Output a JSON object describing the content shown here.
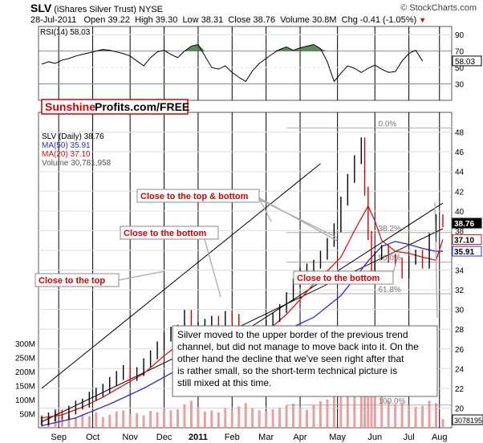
{
  "header": {
    "symbol": "SLV",
    "name": "(iShares Silver Trust)",
    "exchange": "NYSE",
    "credit": "© StockCharts.com",
    "date": "28-Jul-2011",
    "open_label": "Open",
    "open": "39.22",
    "high_label": "High",
    "high": "39.30",
    "low_label": "Low",
    "low": "38.31",
    "close_label": "Close",
    "close": "38.76",
    "volume_label": "Volume",
    "volume": "30.8M",
    "chg_label": "Chg",
    "chg": "-0.41 (-1.05%)",
    "chg_arrow": "▼"
  },
  "colors": {
    "price_up": "#000000",
    "price_down": "#d40000",
    "ma50": "#2b2bd6",
    "ma20": "#e01010",
    "rsi_fill": "#3a7a3a",
    "annotation_text": "#d40000",
    "volume_bar": "#e6a0a0",
    "sunshine": "#d40000",
    "label_price_bg": "#000000",
    "label_ma20_border": "#e01010",
    "label_ma50_border": "#2b2bd6"
  },
  "chart_data": {
    "type": "line",
    "x_tick_labels": [
      "Sep",
      "Oct",
      "Nov",
      "Dec",
      "2011",
      "Feb",
      "Mar",
      "Apr",
      "May",
      "Jun",
      "Jul",
      "Aug"
    ],
    "rsi": {
      "label": "RSI(14) 58.03",
      "current": 58.03,
      "ylim": [
        10,
        100
      ],
      "yticks": [
        90,
        70,
        50,
        30
      ],
      "overbought": 70,
      "oversold": 30,
      "points": [
        [
          0,
          54
        ],
        [
          2,
          57
        ],
        [
          4,
          55
        ],
        [
          6,
          59
        ],
        [
          8,
          61
        ],
        [
          10,
          64
        ],
        [
          12,
          66
        ],
        [
          14,
          68
        ],
        [
          16,
          70
        ],
        [
          18,
          72
        ],
        [
          20,
          71
        ],
        [
          22,
          69
        ],
        [
          24,
          67
        ],
        [
          26,
          64
        ],
        [
          28,
          58
        ],
        [
          30,
          52
        ],
        [
          32,
          62
        ],
        [
          34,
          69
        ],
        [
          36,
          71
        ],
        [
          38,
          66
        ],
        [
          40,
          62
        ],
        [
          42,
          70
        ],
        [
          44,
          76
        ],
        [
          46,
          78
        ],
        [
          48,
          64
        ],
        [
          50,
          50
        ],
        [
          52,
          48
        ],
        [
          54,
          52
        ],
        [
          56,
          44
        ],
        [
          58,
          38
        ],
        [
          60,
          33
        ],
        [
          62,
          46
        ],
        [
          64,
          55
        ],
        [
          66,
          61
        ],
        [
          68,
          67
        ],
        [
          70,
          72
        ],
        [
          72,
          75
        ],
        [
          74,
          71
        ],
        [
          76,
          74
        ],
        [
          78,
          76
        ],
        [
          80,
          78
        ],
        [
          82,
          73
        ],
        [
          84,
          57
        ],
        [
          86,
          33
        ],
        [
          88,
          43
        ],
        [
          90,
          52
        ],
        [
          92,
          49
        ],
        [
          94,
          44
        ],
        [
          96,
          49
        ],
        [
          98,
          53
        ],
        [
          100,
          48
        ],
        [
          102,
          44
        ],
        [
          104,
          45
        ],
        [
          106,
          58
        ],
        [
          108,
          67
        ],
        [
          110,
          71
        ],
        [
          112,
          58
        ]
      ]
    },
    "price": {
      "series_label": "SLV (Daily) 38.76",
      "ma50_label": "MA(50) 35.91",
      "ma20_label": "MA(20) 37.10",
      "volume_label": "Volume 30,781,958",
      "ylim": [
        18,
        50
      ],
      "yticks": [
        48,
        46,
        44,
        42,
        40,
        38,
        36,
        34,
        32,
        30,
        28,
        26,
        24,
        22,
        20
      ],
      "last_price": 38.76,
      "last_ma20": 37.1,
      "last_ma50": 35.91,
      "close": [
        [
          0,
          18.7
        ],
        [
          2,
          19.1
        ],
        [
          4,
          19.4
        ],
        [
          6,
          19.3
        ],
        [
          8,
          19.8
        ],
        [
          10,
          20.3
        ],
        [
          12,
          20.5
        ],
        [
          14,
          21.2
        ],
        [
          16,
          21.6
        ],
        [
          18,
          22.0
        ],
        [
          20,
          22.7
        ],
        [
          22,
          23.3
        ],
        [
          24,
          23.9
        ],
        [
          26,
          23.2
        ],
        [
          28,
          23.7
        ],
        [
          30,
          24.6
        ],
        [
          32,
          25.4
        ],
        [
          34,
          26.3
        ],
        [
          36,
          27.2
        ],
        [
          38,
          27.8
        ],
        [
          40,
          28.0
        ],
        [
          42,
          29.5
        ],
        [
          44,
          28.0
        ],
        [
          46,
          28.3
        ],
        [
          48,
          28.6
        ],
        [
          50,
          28.9
        ],
        [
          52,
          28.4
        ],
        [
          54,
          29.4
        ],
        [
          56,
          29.1
        ],
        [
          58,
          27.9
        ],
        [
          60,
          27.3
        ],
        [
          62,
          26.8
        ],
        [
          64,
          27.6
        ],
        [
          66,
          28.5
        ],
        [
          68,
          29.2
        ],
        [
          70,
          30.1
        ],
        [
          72,
          31.3
        ],
        [
          74,
          32.7
        ],
        [
          76,
          33.8
        ],
        [
          78,
          34.2
        ],
        [
          80,
          34.6
        ],
        [
          82,
          35.5
        ],
        [
          84,
          36.8
        ],
        [
          86,
          38.3
        ],
        [
          88,
          41.0
        ],
        [
          90,
          43.3
        ],
        [
          92,
          45.2
        ],
        [
          94,
          47.0
        ],
        [
          95,
          42.0
        ],
        [
          96,
          37.5
        ],
        [
          97,
          34.3
        ],
        [
          98,
          35.5
        ],
        [
          100,
          36.1
        ],
        [
          102,
          35.2
        ],
        [
          104,
          34.8
        ],
        [
          106,
          33.6
        ],
        [
          108,
          35.0
        ],
        [
          110,
          35.6
        ],
        [
          112,
          34.6
        ],
        [
          114,
          37.3
        ],
        [
          116,
          39.2
        ],
        [
          118,
          38.8
        ]
      ],
      "ma20": [
        [
          0,
          19.0
        ],
        [
          6,
          19.3
        ],
        [
          12,
          20.1
        ],
        [
          18,
          21.1
        ],
        [
          24,
          22.3
        ],
        [
          30,
          23.5
        ],
        [
          36,
          25.3
        ],
        [
          42,
          26.9
        ],
        [
          48,
          27.6
        ],
        [
          54,
          28.1
        ],
        [
          60,
          28.3
        ],
        [
          64,
          27.6
        ],
        [
          68,
          28.3
        ],
        [
          72,
          29.5
        ],
        [
          76,
          31.0
        ],
        [
          80,
          32.6
        ],
        [
          84,
          33.9
        ],
        [
          88,
          35.3
        ],
        [
          92,
          38.0
        ],
        [
          96,
          40.5
        ],
        [
          98,
          39.0
        ],
        [
          100,
          37.0
        ],
        [
          104,
          35.9
        ],
        [
          108,
          35.7
        ],
        [
          112,
          35.3
        ],
        [
          116,
          35.0
        ],
        [
          118,
          37.1
        ]
      ],
      "ma50": [
        [
          0,
          18.2
        ],
        [
          10,
          19.0
        ],
        [
          20,
          20.4
        ],
        [
          30,
          22.0
        ],
        [
          40,
          23.9
        ],
        [
          50,
          25.5
        ],
        [
          60,
          26.6
        ],
        [
          70,
          27.6
        ],
        [
          80,
          29.2
        ],
        [
          88,
          31.4
        ],
        [
          96,
          34.9
        ],
        [
          100,
          36.4
        ],
        [
          104,
          36.9
        ],
        [
          108,
          36.6
        ],
        [
          112,
          36.2
        ],
        [
          116,
          35.9
        ],
        [
          118,
          35.91
        ]
      ],
      "fib": [
        {
          "label": "0.0%",
          "value": 48.4
        },
        {
          "label": "38.2%",
          "value": 37.8
        },
        {
          "label": "50.0%",
          "value": 34.8
        },
        {
          "label": "61.8%",
          "value": 31.6
        },
        {
          "label": "100.0%",
          "value": 20.3
        }
      ]
    },
    "volume": {
      "ylim": [
        0,
        300
      ],
      "ytick_labels": [
        "300M",
        "250M",
        "200M",
        "150M",
        "100M",
        "50M"
      ],
      "yticks": [
        300,
        250,
        200,
        150,
        100,
        50
      ],
      "last": "30781958",
      "bars": [
        [
          0,
          45
        ],
        [
          2,
          38
        ],
        [
          4,
          52
        ],
        [
          6,
          40
        ],
        [
          8,
          44
        ],
        [
          10,
          35
        ],
        [
          12,
          48
        ],
        [
          14,
          42
        ],
        [
          16,
          55
        ],
        [
          18,
          38
        ],
        [
          20,
          46
        ],
        [
          22,
          58
        ],
        [
          24,
          62
        ],
        [
          26,
          48
        ],
        [
          28,
          52
        ],
        [
          30,
          44
        ],
        [
          32,
          60
        ],
        [
          34,
          55
        ],
        [
          36,
          70
        ],
        [
          38,
          62
        ],
        [
          40,
          66
        ],
        [
          42,
          84
        ],
        [
          44,
          96
        ],
        [
          46,
          74
        ],
        [
          48,
          58
        ],
        [
          50,
          62
        ],
        [
          52,
          55
        ],
        [
          54,
          70
        ],
        [
          56,
          64
        ],
        [
          58,
          76
        ],
        [
          60,
          88
        ],
        [
          62,
          70
        ],
        [
          64,
          62
        ],
        [
          66,
          58
        ],
        [
          68,
          66
        ],
        [
          70,
          72
        ],
        [
          72,
          80
        ],
        [
          74,
          86
        ],
        [
          76,
          70
        ],
        [
          78,
          64
        ],
        [
          80,
          80
        ],
        [
          82,
          94
        ],
        [
          84,
          100
        ],
        [
          86,
          118
        ],
        [
          88,
          140
        ],
        [
          90,
          160
        ],
        [
          92,
          182
        ],
        [
          94,
          260
        ],
        [
          95,
          280
        ],
        [
          96,
          250
        ],
        [
          97,
          190
        ],
        [
          98,
          150
        ],
        [
          100,
          120
        ],
        [
          102,
          96
        ],
        [
          104,
          84
        ],
        [
          106,
          88
        ],
        [
          108,
          80
        ],
        [
          110,
          74
        ],
        [
          112,
          78
        ],
        [
          114,
          96
        ],
        [
          116,
          88
        ],
        [
          118,
          31
        ]
      ]
    }
  },
  "annotations": {
    "sunshine_part1": "Sunshine",
    "sunshine_part2": "Profits.com/FREE",
    "close_top": "Close to the top",
    "close_bottom_1": "Close to the bottom",
    "close_top_bottom": "Close to the top & bottom",
    "close_bottom_2": "Close to the bottom",
    "commentary": "Silver moved to the upper border of the previous trend channel, but did not manage to move back into it. On the other hand the decline that we've seen right after that is rather small, so the short-term technical picture is still mixed at this time."
  }
}
